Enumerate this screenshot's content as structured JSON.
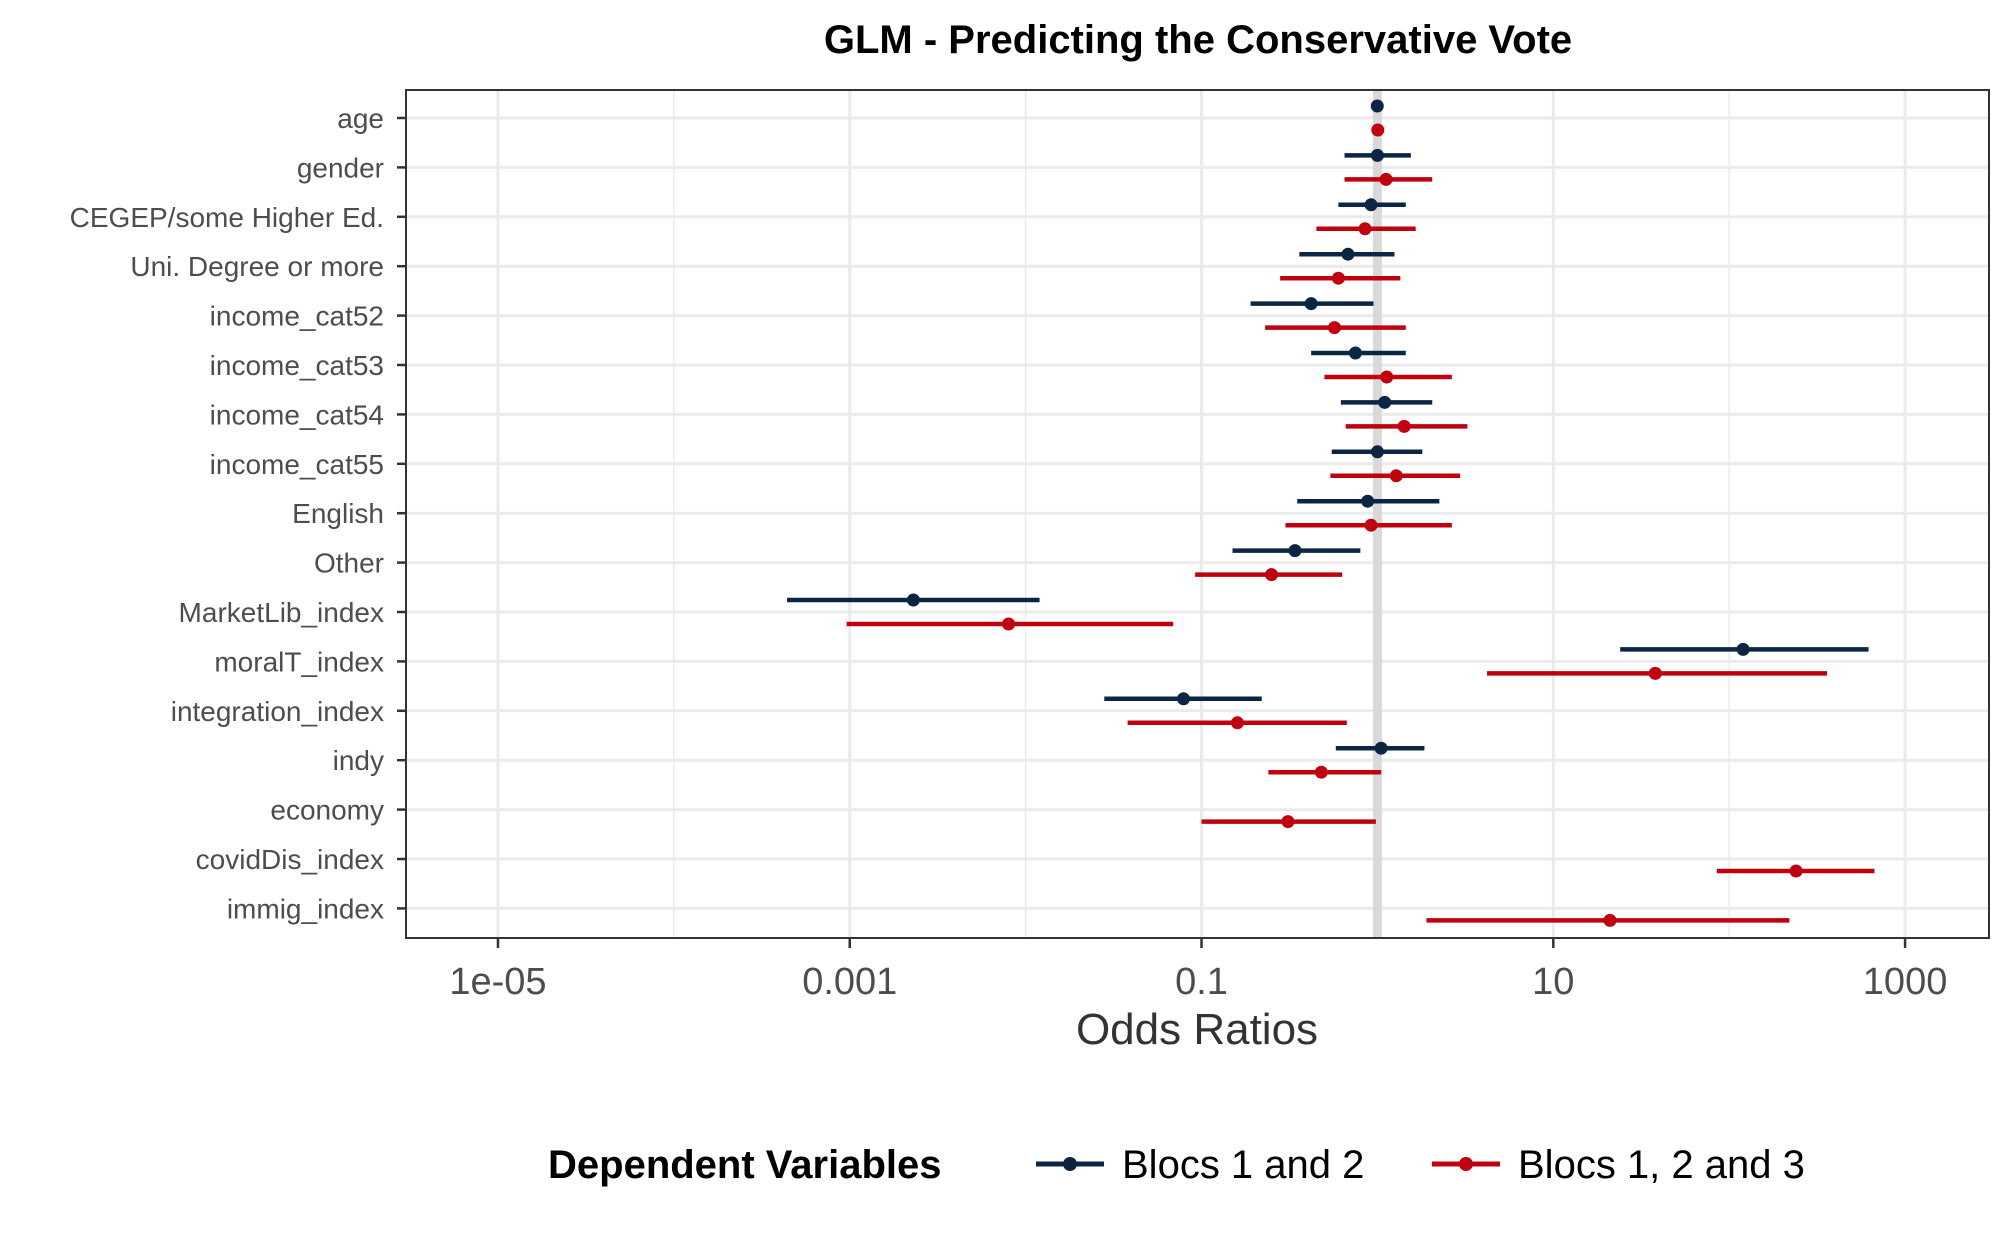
{
  "chart_data": {
    "type": "forest",
    "title": "GLM - Predicting the Conservative Vote",
    "xlabel": "Odds Ratios",
    "ylabel": "",
    "x_scale": "log10",
    "xlim": [
      3e-06,
      3000
    ],
    "x_ticks": [
      1e-05,
      0.001,
      0.1,
      10,
      1000
    ],
    "x_tick_labels": [
      "1e-05",
      "0.001",
      "0.1",
      "10",
      "1000"
    ],
    "reference_line": 1,
    "grid": true,
    "legend_position": "bottom",
    "legend_title": "Dependent Variables",
    "colors": {
      "Blocs 1 and 2": "#0b2545",
      "Blocs 1, 2 and 3": "#c1000f"
    },
    "categories": [
      "age",
      "gender",
      "CEGEP/some Higher Ed.",
      "Uni. Degree or more",
      "income_cat52",
      "income_cat53",
      "income_cat54",
      "income_cat55",
      "English",
      "Other",
      "MarketLib_index",
      "moralT_index",
      "integration_index",
      "indy",
      "economy",
      "covidDis_index",
      "immig_index"
    ],
    "series": [
      {
        "name": "Blocs 1 and 2",
        "points": [
          {
            "term": "age",
            "estimate": 0.998,
            "low": 0.995,
            "high": 1.001
          },
          {
            "term": "gender",
            "estimate": 1.0,
            "low": 0.65,
            "high": 1.55
          },
          {
            "term": "CEGEP/some Higher Ed.",
            "estimate": 0.92,
            "low": 0.6,
            "high": 1.45
          },
          {
            "term": "Uni. Degree or more",
            "estimate": 0.68,
            "low": 0.36,
            "high": 1.25
          },
          {
            "term": "income_cat52",
            "estimate": 0.42,
            "low": 0.19,
            "high": 0.95
          },
          {
            "term": "income_cat53",
            "estimate": 0.75,
            "low": 0.42,
            "high": 1.45
          },
          {
            "term": "income_cat54",
            "estimate": 1.1,
            "low": 0.62,
            "high": 2.05
          },
          {
            "term": "income_cat55",
            "estimate": 1.0,
            "low": 0.55,
            "high": 1.8
          },
          {
            "term": "English",
            "estimate": 0.88,
            "low": 0.35,
            "high": 2.25
          },
          {
            "term": "Other",
            "estimate": 0.34,
            "low": 0.15,
            "high": 0.8
          },
          {
            "term": "MarketLib_index",
            "estimate": 0.0023,
            "low": 0.00044,
            "high": 0.012
          },
          {
            "term": "moralT_index",
            "estimate": 120,
            "low": 24,
            "high": 620
          },
          {
            "term": "integration_index",
            "estimate": 0.079,
            "low": 0.028,
            "high": 0.22
          },
          {
            "term": "indy",
            "estimate": 1.05,
            "low": 0.58,
            "high": 1.85
          }
        ]
      },
      {
        "name": "Blocs 1, 2 and 3",
        "points": [
          {
            "term": "age",
            "estimate": 1.005,
            "low": 1.0,
            "high": 1.01
          },
          {
            "term": "gender",
            "estimate": 1.12,
            "low": 0.65,
            "high": 2.05
          },
          {
            "term": "CEGEP/some Higher Ed.",
            "estimate": 0.85,
            "low": 0.45,
            "high": 1.65
          },
          {
            "term": "Uni. Degree or more",
            "estimate": 0.6,
            "low": 0.28,
            "high": 1.35
          },
          {
            "term": "income_cat52",
            "estimate": 0.57,
            "low": 0.23,
            "high": 1.45
          },
          {
            "term": "income_cat53",
            "estimate": 1.13,
            "low": 0.5,
            "high": 2.65
          },
          {
            "term": "income_cat54",
            "estimate": 1.42,
            "low": 0.66,
            "high": 3.25
          },
          {
            "term": "income_cat55",
            "estimate": 1.28,
            "low": 0.54,
            "high": 2.95
          },
          {
            "term": "English",
            "estimate": 0.92,
            "low": 0.3,
            "high": 2.65
          },
          {
            "term": "Other",
            "estimate": 0.25,
            "low": 0.092,
            "high": 0.63
          },
          {
            "term": "MarketLib_index",
            "estimate": 0.008,
            "low": 0.00096,
            "high": 0.069
          },
          {
            "term": "moralT_index",
            "estimate": 38,
            "low": 4.2,
            "high": 360
          },
          {
            "term": "integration_index",
            "estimate": 0.16,
            "low": 0.038,
            "high": 0.67
          },
          {
            "term": "indy",
            "estimate": 0.48,
            "low": 0.24,
            "high": 1.05
          },
          {
            "term": "economy",
            "estimate": 0.31,
            "low": 0.1,
            "high": 0.98
          },
          {
            "term": "covidDis_index",
            "estimate": 240,
            "low": 85,
            "high": 670
          },
          {
            "term": "immig_index",
            "estimate": 21,
            "low": 1.9,
            "high": 220
          }
        ]
      }
    ]
  }
}
